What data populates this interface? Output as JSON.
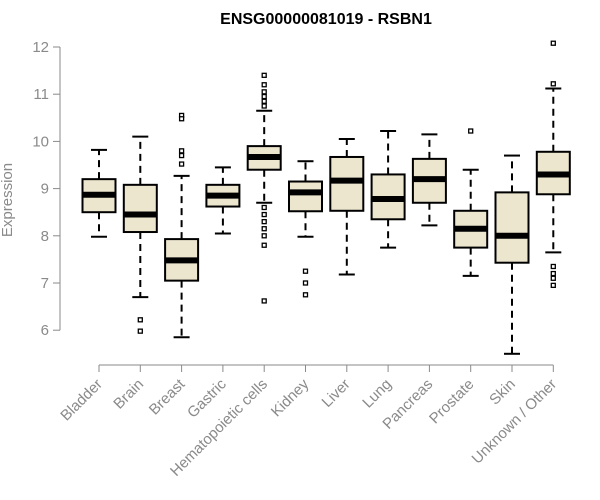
{
  "chart_data": {
    "type": "boxplot",
    "title": "ENSG00000081019 - RSBN1",
    "ylabel": "Expression",
    "xlabel": "",
    "ylim": [
      5.5,
      12.2
    ],
    "yticks": [
      "6",
      "7",
      "8",
      "9",
      "10",
      "11",
      "12"
    ],
    "categories": [
      "Bladder",
      "Brain",
      "Breast",
      "Gastric",
      "Hematopoietic cells",
      "Kidney",
      "Liver",
      "Lung",
      "Pancreas",
      "Prostate",
      "Skin",
      "Unknown / Other"
    ],
    "boxes": [
      {
        "whisker_low": 7.98,
        "q1": 8.5,
        "median": 8.87,
        "q3": 9.2,
        "whisker_high": 9.82,
        "outliers": []
      },
      {
        "whisker_low": 6.7,
        "q1": 8.08,
        "median": 8.45,
        "q3": 9.08,
        "whisker_high": 10.1,
        "outliers": [
          6.22,
          5.98
        ]
      },
      {
        "whisker_low": 5.85,
        "q1": 7.05,
        "median": 7.48,
        "q3": 7.93,
        "whisker_high": 9.27,
        "outliers": [
          10.55,
          10.48,
          9.8,
          9.7,
          9.52
        ]
      },
      {
        "whisker_low": 8.05,
        "q1": 8.62,
        "median": 8.85,
        "q3": 9.08,
        "whisker_high": 9.45,
        "outliers": []
      },
      {
        "whisker_low": 8.7,
        "q1": 9.4,
        "median": 9.67,
        "q3": 9.9,
        "whisker_high": 10.65,
        "outliers": [
          11.4,
          11.2,
          11.05,
          10.95,
          10.85,
          10.75,
          8.6,
          8.45,
          8.3,
          8.15,
          8.0,
          7.8,
          6.62
        ]
      },
      {
        "whisker_low": 7.98,
        "q1": 8.52,
        "median": 8.92,
        "q3": 9.15,
        "whisker_high": 9.58,
        "outliers": [
          7.25,
          7.0,
          6.75
        ]
      },
      {
        "whisker_low": 7.18,
        "q1": 8.53,
        "median": 9.17,
        "q3": 9.67,
        "whisker_high": 10.05,
        "outliers": []
      },
      {
        "whisker_low": 7.75,
        "q1": 8.35,
        "median": 8.78,
        "q3": 9.3,
        "whisker_high": 10.22,
        "outliers": []
      },
      {
        "whisker_low": 8.22,
        "q1": 8.7,
        "median": 9.2,
        "q3": 9.63,
        "whisker_high": 10.15,
        "outliers": []
      },
      {
        "whisker_low": 7.15,
        "q1": 7.75,
        "median": 8.15,
        "q3": 8.53,
        "whisker_high": 9.4,
        "outliers": [
          10.22
        ]
      },
      {
        "whisker_low": 5.5,
        "q1": 7.43,
        "median": 8.0,
        "q3": 8.92,
        "whisker_high": 9.7,
        "outliers": []
      },
      {
        "whisker_low": 7.65,
        "q1": 8.88,
        "median": 9.3,
        "q3": 9.78,
        "whisker_high": 11.12,
        "outliers": [
          12.08,
          11.22,
          7.35,
          7.2,
          7.1,
          6.95
        ]
      }
    ],
    "box_fill": "#ede6cf",
    "box_stroke": "#000000",
    "axis_color": "#8a8a8a"
  }
}
